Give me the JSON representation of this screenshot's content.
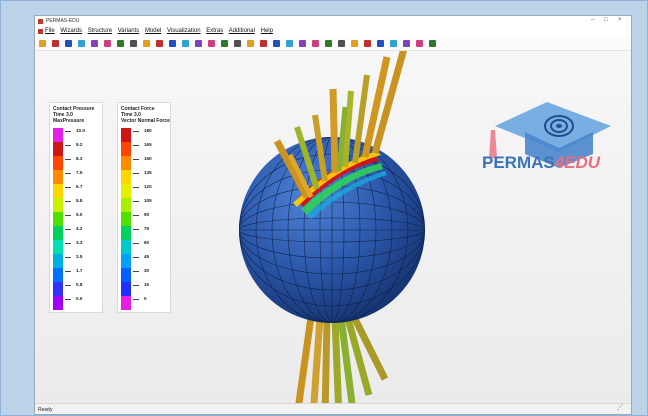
{
  "window": {
    "title": "PERMAS-EDU"
  },
  "menu": [
    "File",
    "Wizards",
    "Structure",
    "Variants",
    "Model",
    "Visualization",
    "Extras",
    "Additional",
    "Help"
  ],
  "toolbar_icons": [
    "open-icon",
    "save-icon",
    "print-icon",
    "model-icon",
    "mesh-icon",
    "element-icon",
    "node-icon",
    "group-icon",
    "load-icon",
    "result-icon",
    "vector-icon",
    "contact-icon",
    "contour-icon",
    "deform-icon",
    "animate-icon",
    "fit-icon",
    "zoom-icon",
    "rotate-icon",
    "pan-icon",
    "light-icon",
    "view-front-icon",
    "view-back-icon",
    "view-left-icon",
    "view-right-icon",
    "view-top-icon",
    "view-bottom-icon",
    "view-iso-icon",
    "pick-icon",
    "measure-icon",
    "clip-icon",
    "settings-icon"
  ],
  "legend_pressure": {
    "title": [
      "Contact Pressure",
      "Time 3.0",
      "MaxPressure"
    ],
    "labels": [
      "10.0",
      "9.2",
      "8.3",
      "7.5",
      "6.7",
      "5.8",
      "5.0",
      "4.2",
      "3.3",
      "2.5",
      "1.7",
      "0.8",
      "0.0"
    ],
    "colors": [
      "#e61ee6",
      "#d01515",
      "#ff4500",
      "#ff8c00",
      "#ffd700",
      "#c8f000",
      "#50e000",
      "#00d060",
      "#00e0b0",
      "#00b0e0",
      "#0070ff",
      "#3030ff",
      "#a000ff"
    ]
  },
  "legend_force": {
    "title": [
      "Contact Force",
      "Time 3.0",
      "Vector Normal Force"
    ],
    "labels": [
      "180",
      "165",
      "150",
      "135",
      "120",
      "105",
      "90",
      "75",
      "60",
      "45",
      "30",
      "15",
      "0"
    ],
    "colors": [
      "#d01515",
      "#ff4500",
      "#ff8c00",
      "#ffd700",
      "#e8f000",
      "#a8f000",
      "#50e000",
      "#00d060",
      "#00c8c8",
      "#00a0ff",
      "#0060ff",
      "#2030ff",
      "#e61ee6"
    ]
  },
  "logo": {
    "brand": "PERMAS",
    "suffix": "4EDU"
  },
  "status": {
    "text": "Ready"
  }
}
